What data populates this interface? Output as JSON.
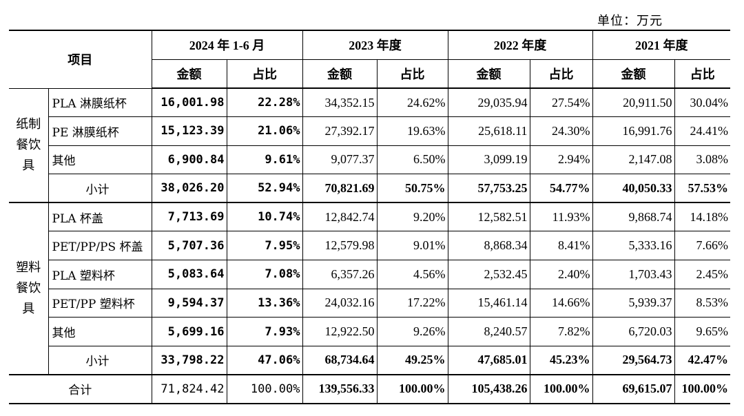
{
  "unit_label": "单位：万元",
  "header": {
    "item": "项目",
    "periods": [
      "2024 年 1-6 月",
      "2023 年度",
      "2022 年度",
      "2021 年度"
    ],
    "amount": "金额",
    "ratio": "占比"
  },
  "groups": [
    {
      "category": "纸制\n餐饮\n具",
      "rows": [
        {
          "name": "PLA 淋膜纸杯",
          "values": [
            "16,001.98",
            "22.28%",
            "34,352.15",
            "24.62%",
            "29,035.94",
            "27.54%",
            "20,911.50",
            "30.04%"
          ]
        },
        {
          "name": "PE 淋膜纸杯",
          "values": [
            "15,123.39",
            "21.06%",
            "27,392.17",
            "19.63%",
            "25,618.11",
            "24.30%",
            "16,991.76",
            "24.41%"
          ]
        },
        {
          "name": "其他",
          "values": [
            "6,900.84",
            "9.61%",
            "9,077.37",
            "6.50%",
            "3,099.19",
            "2.94%",
            "2,147.08",
            "3.08%"
          ]
        }
      ],
      "subtotal": {
        "name": "小计",
        "values": [
          "38,026.20",
          "52.94%",
          "70,821.69",
          "50.75%",
          "57,753.25",
          "54.77%",
          "40,050.33",
          "57.53%"
        ]
      }
    },
    {
      "category": "塑料\n餐饮\n具",
      "rows": [
        {
          "name": "PLA 杯盖",
          "values": [
            "7,713.69",
            "10.74%",
            "12,842.74",
            "9.20%",
            "12,582.51",
            "11.93%",
            "9,868.74",
            "14.18%"
          ]
        },
        {
          "name": "PET/PP/PS 杯盖",
          "values": [
            "5,707.36",
            "7.95%",
            "12,579.98",
            "9.01%",
            "8,868.34",
            "8.41%",
            "5,333.16",
            "7.66%"
          ]
        },
        {
          "name": "PLA 塑料杯",
          "values": [
            "5,083.64",
            "7.08%",
            "6,357.26",
            "4.56%",
            "2,532.45",
            "2.40%",
            "1,703.43",
            "2.45%"
          ]
        },
        {
          "name": "PET/PP 塑料杯",
          "values": [
            "9,594.37",
            "13.36%",
            "24,032.16",
            "17.22%",
            "15,461.14",
            "14.66%",
            "5,939.37",
            "8.53%"
          ]
        },
        {
          "name": "其他",
          "values": [
            "5,699.16",
            "7.93%",
            "12,922.50",
            "9.26%",
            "8,240.57",
            "7.82%",
            "6,720.03",
            "9.65%"
          ]
        }
      ],
      "subtotal": {
        "name": "小计",
        "values": [
          "33,798.22",
          "47.06%",
          "68,734.64",
          "49.25%",
          "47,685.01",
          "45.23%",
          "29,564.73",
          "42.47%"
        ]
      }
    }
  ],
  "total": {
    "name": "合计",
    "values": [
      "71,824.42",
      "100.00%",
      "139,556.33",
      "100.00%",
      "105,438.26",
      "100.00%",
      "69,615.07",
      "100.00%"
    ]
  }
}
